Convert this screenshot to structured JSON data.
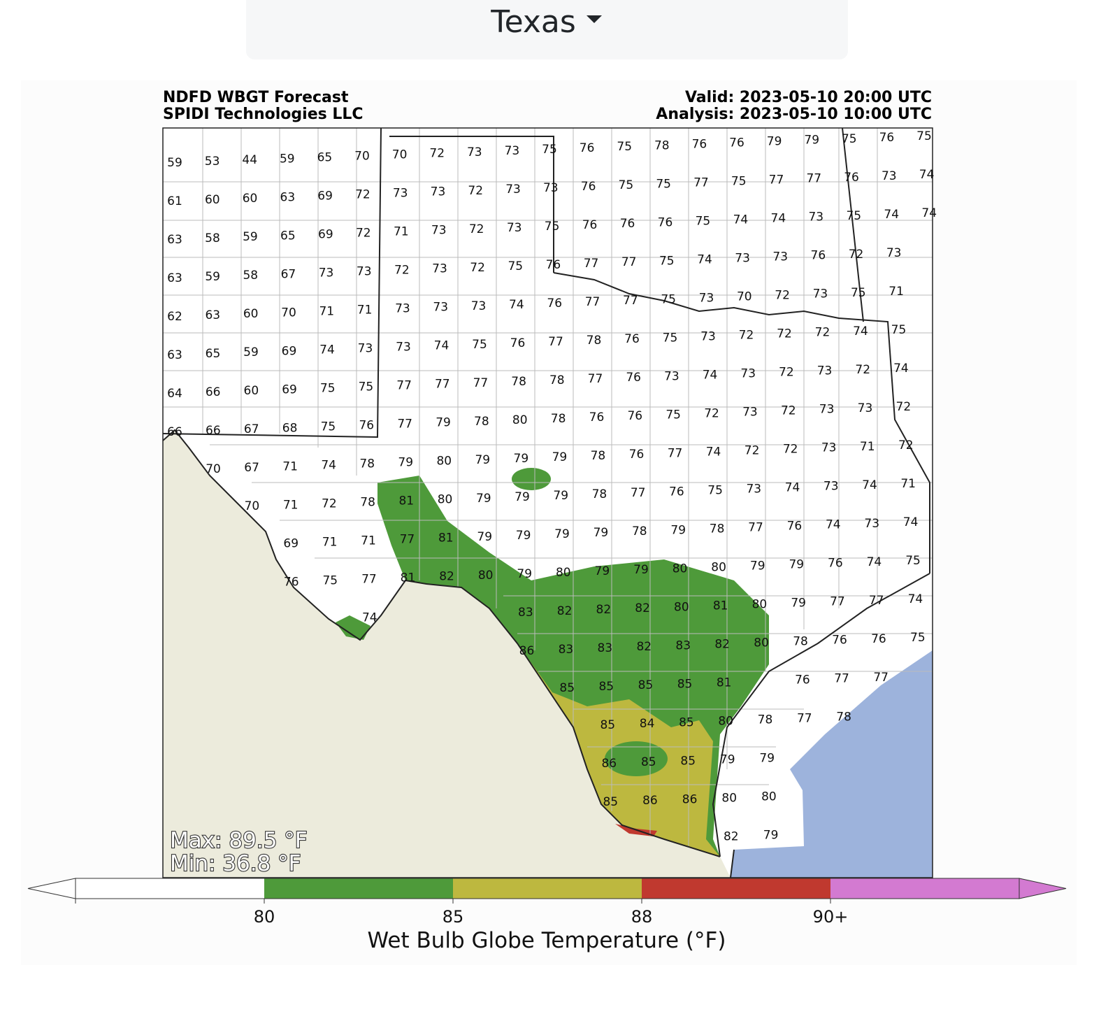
{
  "dropdown": {
    "label": "Texas"
  },
  "map": {
    "title": "NDFD WBGT Forecast",
    "credit": "SPIDI Technologies LLC",
    "valid": "Valid: 2023-05-10 20:00 UTC",
    "analysis": "Analysis: 2023-05-10 10:00 UTC",
    "station_values": [
      [
        59,
        53,
        44,
        59,
        65,
        70,
        70,
        72,
        73,
        73,
        75,
        76,
        75,
        78,
        76,
        76,
        79,
        79,
        75,
        76,
        75
      ],
      [
        61,
        60,
        60,
        63,
        69,
        72,
        73,
        73,
        72,
        73,
        73,
        76,
        75,
        75,
        77,
        75,
        77,
        77,
        76,
        73,
        74
      ],
      [
        63,
        58,
        59,
        65,
        69,
        72,
        71,
        73,
        72,
        73,
        75,
        76,
        76,
        76,
        75,
        74,
        74,
        73,
        75,
        74,
        74
      ],
      [
        63,
        59,
        58,
        67,
        73,
        73,
        72,
        73,
        72,
        75,
        76,
        77,
        77,
        75,
        74,
        73,
        73,
        76,
        72,
        73,
        null
      ],
      [
        62,
        63,
        60,
        70,
        71,
        71,
        73,
        73,
        73,
        74,
        76,
        77,
        77,
        75,
        73,
        70,
        72,
        73,
        75,
        71,
        null
      ],
      [
        63,
        65,
        59,
        69,
        74,
        73,
        73,
        74,
        75,
        76,
        77,
        78,
        76,
        75,
        73,
        72,
        72,
        72,
        74,
        75,
        null
      ],
      [
        64,
        66,
        60,
        69,
        75,
        75,
        77,
        77,
        77,
        78,
        78,
        77,
        76,
        73,
        74,
        73,
        72,
        73,
        72,
        74,
        null
      ],
      [
        66,
        66,
        67,
        68,
        75,
        76,
        77,
        79,
        78,
        80,
        78,
        76,
        76,
        75,
        72,
        73,
        72,
        73,
        73,
        72,
        null
      ],
      [
        null,
        70,
        67,
        71,
        74,
        78,
        79,
        80,
        79,
        79,
        79,
        78,
        76,
        77,
        74,
        72,
        72,
        73,
        71,
        72,
        null
      ],
      [
        null,
        null,
        70,
        71,
        72,
        78,
        81,
        80,
        79,
        79,
        79,
        78,
        77,
        76,
        75,
        73,
        74,
        73,
        74,
        71,
        null
      ],
      [
        null,
        null,
        null,
        69,
        71,
        71,
        77,
        81,
        79,
        79,
        79,
        79,
        78,
        79,
        78,
        77,
        76,
        74,
        73,
        74,
        null
      ],
      [
        null,
        null,
        null,
        76,
        75,
        77,
        81,
        82,
        80,
        79,
        80,
        79,
        79,
        80,
        80,
        79,
        79,
        76,
        74,
        75,
        null
      ],
      [
        null,
        null,
        null,
        null,
        null,
        74,
        null,
        null,
        null,
        83,
        82,
        82,
        82,
        80,
        81,
        80,
        79,
        77,
        77,
        74,
        null
      ],
      [
        null,
        null,
        null,
        null,
        null,
        null,
        null,
        null,
        null,
        86,
        83,
        83,
        82,
        83,
        82,
        80,
        78,
        76,
        76,
        75,
        null
      ],
      [
        null,
        null,
        null,
        null,
        null,
        null,
        null,
        null,
        null,
        null,
        85,
        85,
        85,
        85,
        81,
        null,
        76,
        77,
        77,
        null,
        null
      ],
      [
        null,
        null,
        null,
        null,
        null,
        null,
        null,
        null,
        null,
        null,
        null,
        85,
        84,
        85,
        80,
        78,
        77,
        78,
        null,
        null,
        null
      ],
      [
        null,
        null,
        null,
        null,
        null,
        null,
        null,
        null,
        null,
        null,
        null,
        86,
        85,
        85,
        79,
        79,
        null,
        null,
        null,
        null,
        null
      ],
      [
        null,
        null,
        null,
        null,
        null,
        null,
        null,
        null,
        null,
        null,
        null,
        85,
        86,
        86,
        80,
        80,
        null,
        null,
        null,
        null,
        null
      ],
      [
        null,
        null,
        null,
        null,
        null,
        null,
        null,
        null,
        null,
        null,
        null,
        null,
        null,
        null,
        82,
        79,
        null,
        null,
        null,
        null,
        null
      ]
    ],
    "max_label": "Max: 89.5 °F",
    "min_label": "Min: 36.8 °F"
  },
  "colorbar": {
    "colors": [
      "#ffffff",
      "#4e9a3a",
      "#bdb83f",
      "#c0392f",
      "#d37ad1"
    ],
    "ticks": [
      80,
      85,
      88,
      {
        "value": 90,
        "label": "90+"
      }
    ],
    "label": "Wet Bulb Globe Temperature (°F)"
  }
}
